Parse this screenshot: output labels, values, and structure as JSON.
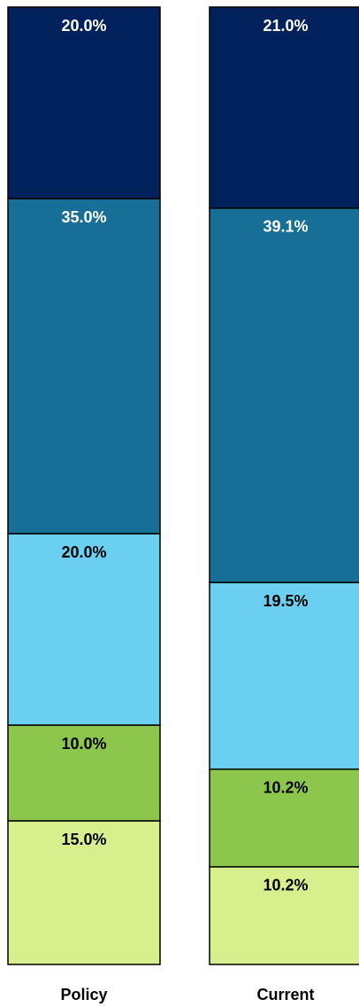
{
  "chart_data": {
    "type": "stacked_bar",
    "categories": [
      "Policy",
      "Current"
    ],
    "ylim": [
      0,
      100
    ],
    "series": [
      {
        "color": "#d8ef8e",
        "label_color": "#000000",
        "values": [
          15,
          10.2
        ],
        "value_labels": [
          "15.0%",
          "10.2%"
        ]
      },
      {
        "color": "#8dc64c",
        "label_color": "#000000",
        "values": [
          10,
          10.2
        ],
        "value_labels": [
          "10.0%",
          "10.2%"
        ]
      },
      {
        "color": "#6bcff2",
        "label_color": "#000000",
        "values": [
          20,
          19.5
        ],
        "value_labels": [
          "20.0%",
          "19.5%"
        ]
      },
      {
        "color": "#176e96",
        "label_color": "#ffffff",
        "values": [
          35,
          39.1
        ],
        "value_labels": [
          "35.0%",
          "39.1%"
        ]
      },
      {
        "color": "#00215b",
        "label_color": "#ffffff",
        "values": [
          20,
          21.0
        ],
        "value_labels": [
          "20.0%",
          "21.0%"
        ]
      }
    ]
  }
}
